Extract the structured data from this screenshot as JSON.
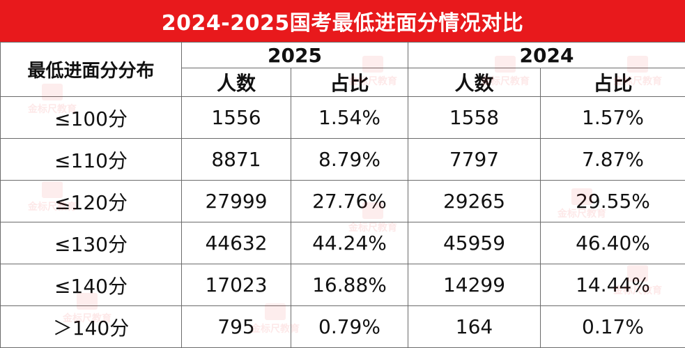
{
  "title": "2024-2025国考最低进面分情况对比",
  "row_header": "最低进面分分布",
  "years": [
    "2025",
    "2024"
  ],
  "subheaders": [
    "人数",
    "占比",
    "人数",
    "占比"
  ],
  "rows": [
    {
      "label": "≤100分",
      "values": [
        "1556",
        "1.54%",
        "1558",
        "1.57%"
      ]
    },
    {
      "label": "≤110分",
      "values": [
        "8871",
        "8.79%",
        "7797",
        "7.87%"
      ]
    },
    {
      "label": "≤120分",
      "values": [
        "27999",
        "27.76%",
        "29265",
        "29.55%"
      ]
    },
    {
      "label": "≤130分",
      "values": [
        "44632",
        "44.24%",
        "45959",
        "46.40%"
      ]
    },
    {
      "label": "≤140分",
      "values": [
        "17023",
        "16.88%",
        "14299",
        "14.44%"
      ]
    },
    {
      "label": "＞140分",
      "values": [
        "795",
        "0.79%",
        "164",
        "0.17%"
      ]
    }
  ],
  "watermark": "金标尺教育"
}
